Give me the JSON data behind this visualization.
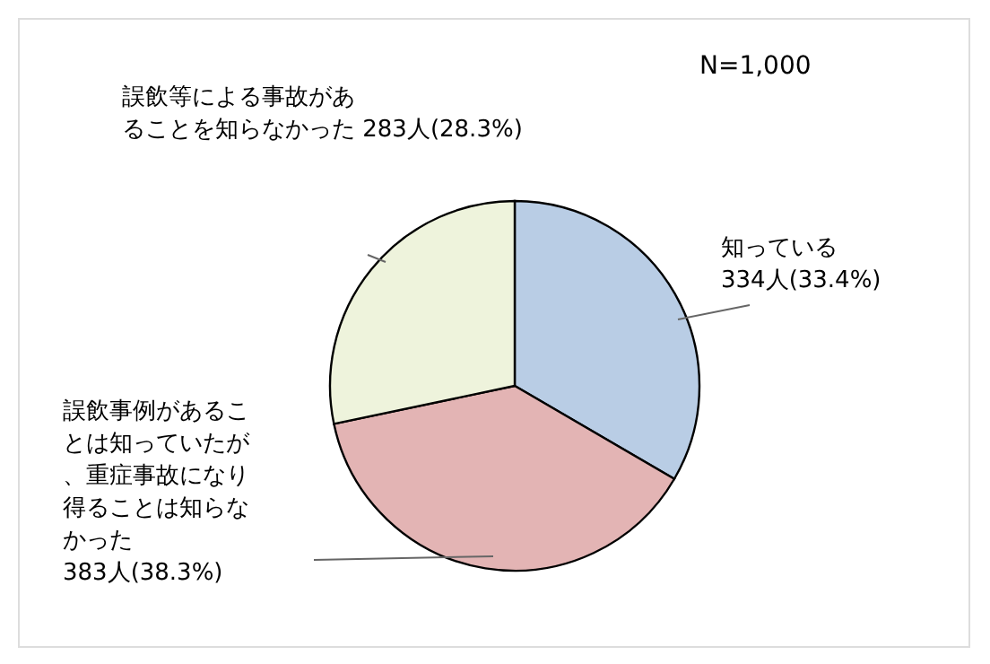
{
  "chart_data": {
    "type": "pie",
    "categories": [
      "知っている",
      "誤飲事例があることは知っていたが、重症事故になり得ることは知らなかった",
      "誤飲等による事故があることを知らなかった"
    ],
    "values": [
      334,
      383,
      283
    ],
    "value_labels": [
      "334人(33.4%)",
      "383人(38.3%)",
      "283人(28.3%)"
    ],
    "colors": [
      "#b9cde5",
      "#e3b4b4",
      "#eef3dc"
    ],
    "annotations": [
      "N=1,000"
    ]
  }
}
